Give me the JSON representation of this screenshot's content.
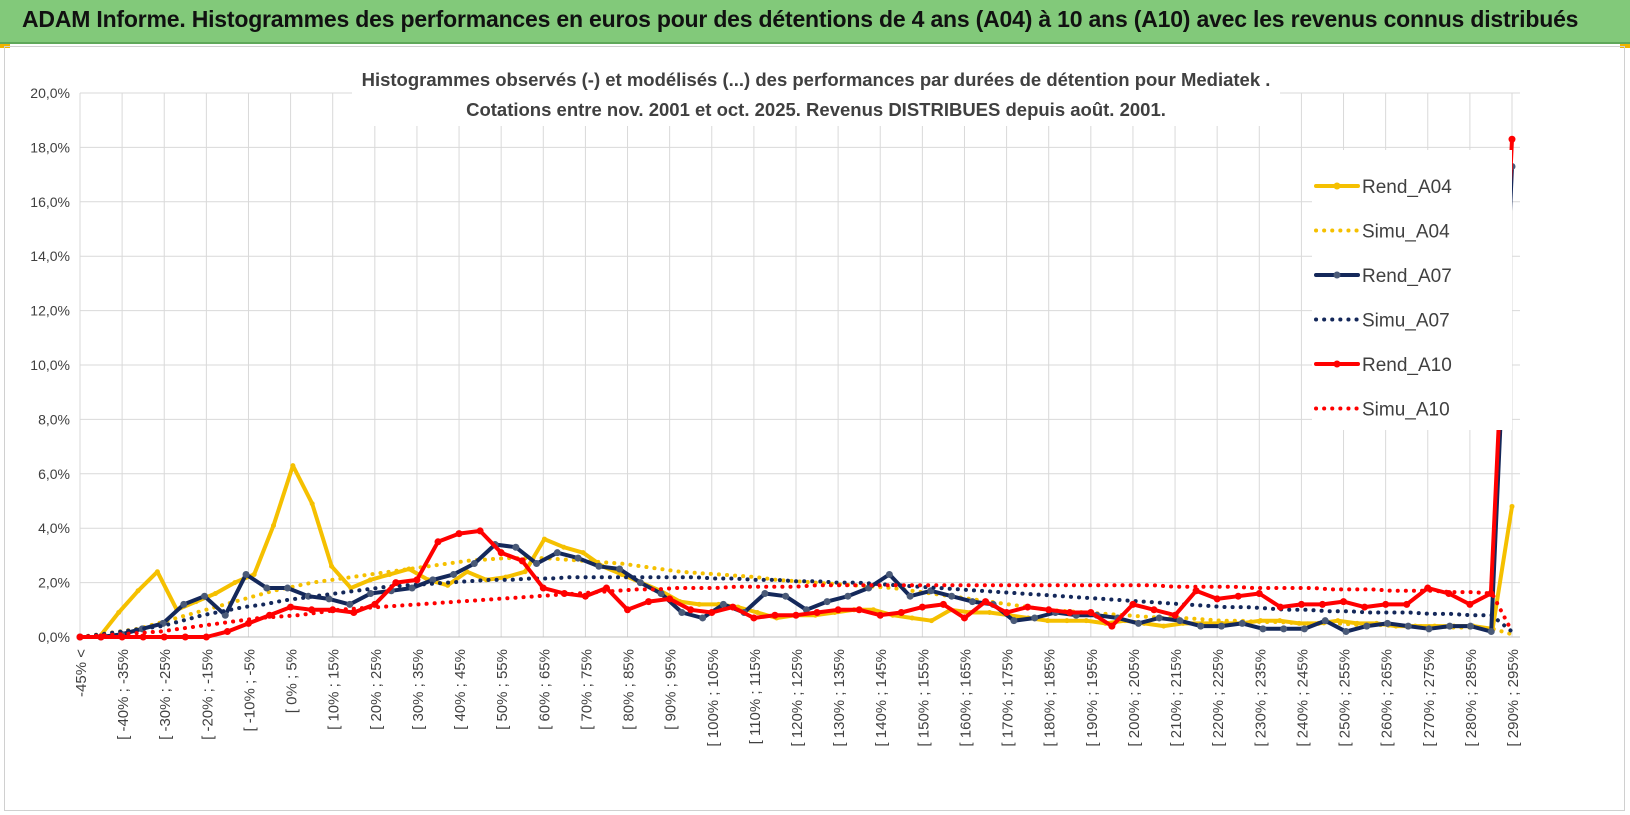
{
  "header": {
    "title": "ADAM Informe. Histogrammes des performances en euros pour des détentions de 4 ans (A04) à 10 ans (A10) avec les revenus connus distribués"
  },
  "chart_data": {
    "type": "line",
    "title": "Histogrammes observés (-) et modélisés (...) des performances par durées de détention pour Mediatek .",
    "subtitle": "Cotations entre nov. 2001 et oct. 2025.  Revenus DISTRIBUES depuis août. 2001.",
    "xlabel": "",
    "ylabel": "",
    "ylim": [
      0,
      20
    ],
    "y_ticks": [
      "0,0%",
      "2,0%",
      "4,0%",
      "6,0%",
      "8,0%",
      "10,0%",
      "12,0%",
      "14,0%",
      "16,0%",
      "18,0%",
      "20,0%"
    ],
    "grid": true,
    "legend_position": "right",
    "x_tick_labels": [
      "-45% <",
      "[ -40% ; -35%",
      "[ -30% ; -25%",
      "[ -20% ; -15%",
      "[ -10% ; -5%",
      "[ 0% ; 5%",
      "[ 10% ; 15%",
      "[ 20% ; 25%",
      "[ 30% ; 35%",
      "[ 40% ; 45%",
      "[ 50% ; 55%",
      "[ 60% ; 65%",
      "[ 70% ; 75%",
      "[ 80% ; 85%",
      "[ 90% ; 95%",
      "[ 100% ; 105%",
      "[ 110% ; 115%",
      "[ 120% ; 125%",
      "[ 130% ; 135%",
      "[ 140% ; 145%",
      "[ 150% ; 155%",
      "[ 160% ; 165%",
      "[ 170% ; 175%",
      "[ 180% ; 185%",
      "[ 190% ; 195%",
      "[ 200% ; 205%",
      "[ 210% ; 215%",
      "[ 220% ; 225%",
      "[ 230% ; 235%",
      "[ 240% ; 245%",
      "[ 250% ; 255%",
      "[ 260% ; 265%",
      "[ 270% ; 275%",
      "[ 280% ; 285%",
      "[ 290% ; 295%"
    ],
    "series": [
      {
        "name": "Rend_A04",
        "style": "solid",
        "color": "#f5c000",
        "values": [
          0.0,
          0.0,
          0.9,
          1.7,
          2.4,
          1.0,
          1.3,
          1.6,
          2.0,
          2.3,
          4.1,
          6.3,
          4.9,
          2.6,
          1.8,
          2.1,
          2.3,
          2.5,
          2.1,
          1.9,
          2.4,
          2.1,
          2.2,
          2.4,
          3.6,
          3.3,
          3.1,
          2.6,
          2.3,
          2.0,
          1.7,
          1.3,
          1.2,
          1.2,
          1.1,
          0.9,
          0.7,
          0.8,
          0.8,
          0.9,
          1.0,
          1.0,
          0.8,
          0.7,
          0.6,
          1.0,
          0.9,
          0.9,
          0.8,
          0.7,
          0.6,
          0.6,
          0.6,
          0.5,
          0.6,
          0.5,
          0.4,
          0.5,
          0.5,
          0.5,
          0.5,
          0.6,
          0.6,
          0.5,
          0.5,
          0.6,
          0.5,
          0.5,
          0.4,
          0.4,
          0.4,
          0.4,
          0.4,
          0.3,
          4.8
        ]
      },
      {
        "name": "Simu_A04",
        "style": "dotted",
        "color": "#f5c000",
        "values": [
          0.0,
          0.1,
          0.2,
          0.3,
          0.5,
          0.7,
          0.9,
          1.1,
          1.3,
          1.5,
          1.7,
          1.85,
          2.0,
          2.1,
          2.2,
          2.3,
          2.4,
          2.5,
          2.6,
          2.7,
          2.8,
          2.85,
          2.9,
          2.9,
          2.9,
          2.85,
          2.8,
          2.75,
          2.7,
          2.6,
          2.5,
          2.4,
          2.35,
          2.3,
          2.25,
          2.2,
          2.1,
          2.05,
          2.0,
          1.95,
          1.9,
          1.85,
          1.8,
          1.7,
          1.6,
          1.5,
          1.4,
          1.3,
          1.2,
          1.1,
          1.0,
          0.95,
          0.9,
          0.85,
          0.8,
          0.75,
          0.7,
          0.7,
          0.65,
          0.6,
          0.6,
          0.55,
          0.55,
          0.5,
          0.5,
          0.5,
          0.45,
          0.45,
          0.4,
          0.4,
          0.4,
          0.35,
          0.35,
          0.3,
          0.1
        ]
      },
      {
        "name": "Rend_A07",
        "style": "solid",
        "color": "#14285a",
        "values": [
          0.0,
          0.0,
          0.1,
          0.3,
          0.5,
          1.2,
          1.5,
          0.8,
          2.3,
          1.8,
          1.8,
          1.5,
          1.4,
          1.2,
          1.6,
          1.7,
          1.8,
          2.1,
          2.3,
          2.7,
          3.4,
          3.3,
          2.7,
          3.1,
          2.9,
          2.6,
          2.5,
          2.0,
          1.6,
          0.9,
          0.7,
          1.2,
          0.9,
          1.6,
          1.5,
          1.0,
          1.3,
          1.5,
          1.8,
          2.3,
          1.5,
          1.7,
          1.5,
          1.3,
          1.2,
          0.6,
          0.7,
          0.9,
          0.8,
          0.8,
          0.7,
          0.5,
          0.7,
          0.6,
          0.4,
          0.4,
          0.5,
          0.3,
          0.3,
          0.3,
          0.6,
          0.2,
          0.4,
          0.5,
          0.4,
          0.3,
          0.4,
          0.4,
          0.2,
          17.3
        ]
      },
      {
        "name": "Simu_A07",
        "style": "dotted",
        "color": "#14285a",
        "values": [
          0.0,
          0.1,
          0.2,
          0.3,
          0.4,
          0.6,
          0.8,
          0.95,
          1.1,
          1.2,
          1.35,
          1.45,
          1.55,
          1.65,
          1.75,
          1.85,
          1.9,
          1.95,
          2.0,
          2.05,
          2.1,
          2.1,
          2.15,
          2.15,
          2.2,
          2.2,
          2.2,
          2.2,
          2.2,
          2.2,
          2.2,
          2.15,
          2.15,
          2.1,
          2.1,
          2.05,
          2.05,
          2.0,
          2.0,
          1.95,
          1.9,
          1.85,
          1.8,
          1.75,
          1.7,
          1.65,
          1.6,
          1.55,
          1.5,
          1.45,
          1.4,
          1.35,
          1.3,
          1.25,
          1.2,
          1.15,
          1.1,
          1.1,
          1.05,
          1.0,
          1.0,
          0.95,
          0.95,
          0.9,
          0.9,
          0.9,
          0.85,
          0.85,
          0.8,
          0.8,
          0.2
        ]
      },
      {
        "name": "Rend_A10",
        "style": "solid",
        "color": "#ff0000",
        "values": [
          0.0,
          0.0,
          0.0,
          0.0,
          0.0,
          0.0,
          0.0,
          0.2,
          0.5,
          0.8,
          1.1,
          1.0,
          1.0,
          0.9,
          1.2,
          2.0,
          2.1,
          3.5,
          3.8,
          3.9,
          3.1,
          2.8,
          1.8,
          1.6,
          1.5,
          1.8,
          1.0,
          1.3,
          1.4,
          1.0,
          0.9,
          1.1,
          0.7,
          0.8,
          0.8,
          0.9,
          1.0,
          1.0,
          0.8,
          0.9,
          1.1,
          1.2,
          0.7,
          1.3,
          0.9,
          1.1,
          1.0,
          0.9,
          0.9,
          0.4,
          1.2,
          1.0,
          0.8,
          1.7,
          1.4,
          1.5,
          1.6,
          1.1,
          1.2,
          1.2,
          1.3,
          1.1,
          1.2,
          1.2,
          1.8,
          1.6,
          1.2,
          1.6,
          18.3
        ]
      },
      {
        "name": "Simu_A10",
        "style": "dotted",
        "color": "#ff0000",
        "values": [
          0.0,
          0.05,
          0.1,
          0.15,
          0.2,
          0.3,
          0.4,
          0.5,
          0.6,
          0.7,
          0.75,
          0.8,
          0.9,
          1.0,
          1.05,
          1.1,
          1.15,
          1.2,
          1.25,
          1.3,
          1.35,
          1.4,
          1.45,
          1.5,
          1.55,
          1.6,
          1.65,
          1.7,
          1.75,
          1.75,
          1.8,
          1.8,
          1.8,
          1.85,
          1.85,
          1.85,
          1.85,
          1.9,
          1.9,
          1.9,
          1.9,
          1.9,
          1.9,
          1.9,
          1.9,
          1.9,
          1.9,
          1.9,
          1.9,
          1.9,
          1.9,
          1.9,
          1.9,
          1.9,
          1.9,
          1.85,
          1.85,
          1.85,
          1.85,
          1.8,
          1.8,
          1.8,
          1.8,
          1.75,
          1.75,
          1.75,
          1.7,
          1.7,
          1.7,
          1.65,
          1.65,
          1.6,
          0.2
        ]
      }
    ]
  }
}
